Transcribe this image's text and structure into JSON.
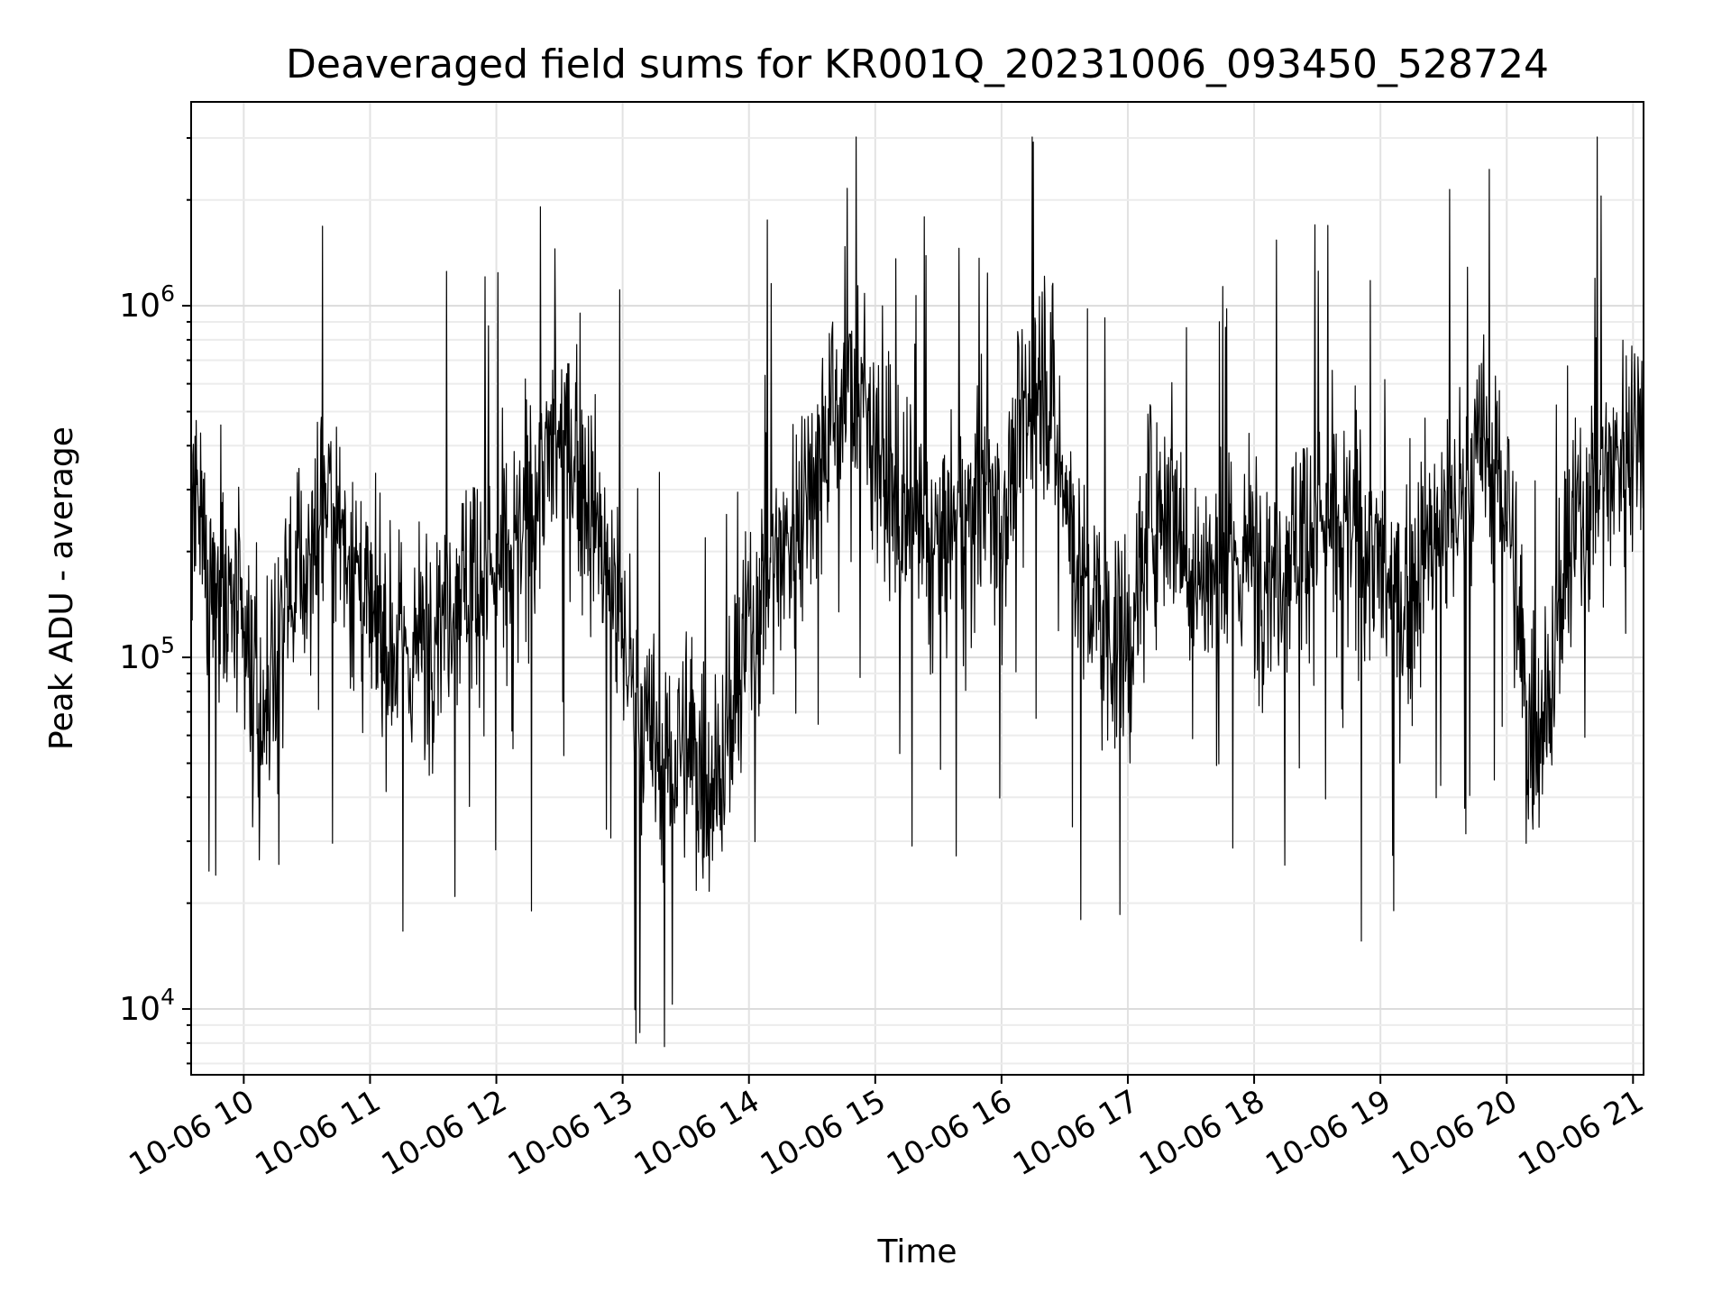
{
  "chart_data": {
    "type": "line",
    "title": "Deaveraged field sums for KR001Q_20231006_093450_528724",
    "xlabel": "Time",
    "ylabel": "Peak ADU - average",
    "yscale": "log",
    "grid": "on (major and minor)",
    "line_color": "#000000",
    "x_range": [
      "2023-10-06 09:35",
      "2023-10-06 21:05"
    ],
    "ylim": [
      6500,
      3800000
    ],
    "y_ticks": [
      {
        "value": 10000,
        "mantissa": "10",
        "exponent": "4"
      },
      {
        "value": 100000,
        "mantissa": "10",
        "exponent": "5"
      },
      {
        "value": 1000000,
        "mantissa": "10",
        "exponent": "6"
      }
    ],
    "x_ticks": [
      {
        "hour": 10,
        "label": "10-06 10"
      },
      {
        "hour": 11,
        "label": "10-06 11"
      },
      {
        "hour": 12,
        "label": "10-06 12"
      },
      {
        "hour": 13,
        "label": "10-06 13"
      },
      {
        "hour": 14,
        "label": "10-06 14"
      },
      {
        "hour": 15,
        "label": "10-06 15"
      },
      {
        "hour": 16,
        "label": "10-06 16"
      },
      {
        "hour": 17,
        "label": "10-06 17"
      },
      {
        "hour": 18,
        "label": "10-06 18"
      },
      {
        "hour": 19,
        "label": "10-06 19"
      },
      {
        "hour": 20,
        "label": "10-06 20"
      },
      {
        "hour": 21,
        "label": "10-06 21"
      }
    ],
    "series": [
      {
        "x": [
          "09:35",
          "09:45",
          "09:55",
          "10:00",
          "10:05",
          "10:10",
          "10:20",
          "10:30",
          "10:40",
          "10:50",
          "11:00",
          "11:10",
          "11:20",
          "11:30",
          "11:40",
          "11:50",
          "12:00",
          "12:10",
          "12:20",
          "12:30",
          "12:40",
          "12:50",
          "13:00",
          "13:10",
          "13:20",
          "13:30",
          "13:40",
          "13:50",
          "14:00",
          "14:10",
          "14:20",
          "14:30",
          "14:40",
          "14:50",
          "15:00",
          "15:10",
          "15:20",
          "15:30",
          "15:40",
          "15:50",
          "16:00",
          "16:10",
          "16:20",
          "16:30",
          "16:40",
          "16:50",
          "17:00",
          "17:10",
          "17:20",
          "17:30",
          "17:40",
          "17:50",
          "18:00",
          "18:10",
          "18:20",
          "18:30",
          "18:40",
          "18:50",
          "19:00",
          "19:10",
          "19:20",
          "19:30",
          "19:40",
          "19:50",
          "20:00",
          "20:10",
          "20:20",
          "20:30",
          "20:40",
          "20:50",
          "21:00",
          "21:05"
        ],
        "y": [
          250000,
          180000,
          130000,
          110000,
          70000,
          60000,
          150000,
          180000,
          300000,
          200000,
          120000,
          110000,
          100000,
          130000,
          160000,
          180000,
          170000,
          200000,
          320000,
          420000,
          350000,
          200000,
          120000,
          60000,
          50000,
          55000,
          45000,
          55000,
          120000,
          180000,
          220000,
          350000,
          500000,
          600000,
          450000,
          250000,
          220000,
          200000,
          250000,
          300000,
          250000,
          450000,
          700000,
          300000,
          150000,
          120000,
          100000,
          250000,
          300000,
          180000,
          160000,
          180000,
          200000,
          180000,
          220000,
          250000,
          220000,
          230000,
          180000,
          130000,
          200000,
          230000,
          300000,
          400000,
          300000,
          60000,
          80000,
          200000,
          300000,
          350000,
          450000,
          500000
        ]
      }
    ]
  }
}
